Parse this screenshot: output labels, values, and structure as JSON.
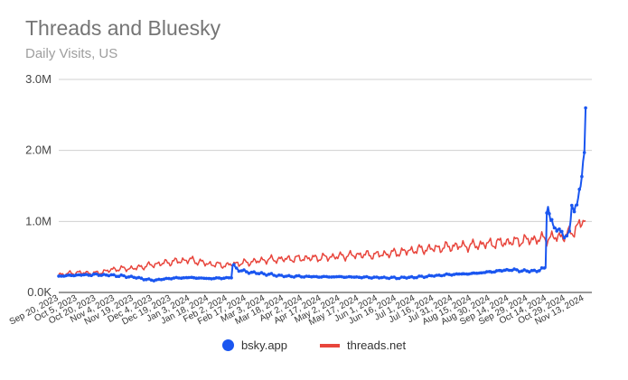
{
  "chart_data": {
    "type": "line",
    "title": "Threads and Bluesky",
    "subtitle": "Daily Visits, US",
    "ylim": [
      0,
      3000000
    ],
    "yticks": [
      {
        "value": 0,
        "label": "0.0K"
      },
      {
        "value": 1000000,
        "label": "1.0M"
      },
      {
        "value": 2000000,
        "label": "2.0M"
      },
      {
        "value": 3000000,
        "label": "3.0M"
      }
    ],
    "xrange": [
      "2023-09-20",
      "2024-11-19"
    ],
    "xticks": [
      "Sep 20, 2023",
      "Oct 5, 2023",
      "Oct 20, 2023",
      "Nov 4, 2023",
      "Nov 19, 2023",
      "Dec 4, 2023",
      "Dec 19, 2023",
      "Jan 3, 2024",
      "Jan 18, 2024",
      "Feb 2, 2024",
      "Feb 17, 2024",
      "Mar 3, 2024",
      "Mar 18, 2024",
      "Apr 2, 2024",
      "Apr 17, 2024",
      "May 2, 2024",
      "May 17, 2024",
      "Jun 1, 2024",
      "Jun 16, 2024",
      "Jul 1, 2024",
      "Jul 16, 2024",
      "Jul 31, 2024",
      "Aug 15, 2024",
      "Aug 30, 2024",
      "Sep 14, 2024",
      "Sep 29, 2024",
      "Oct 14, 2024",
      "Oct 29, 2024",
      "Nov 13, 2024"
    ],
    "grid": true,
    "legend_position": "bottom",
    "series": [
      {
        "name": "bsky.app",
        "color": "#1a56f0",
        "marker": "circle",
        "points": [
          [
            "2023-09-20",
            230000
          ],
          [
            "2023-10-05",
            245000
          ],
          [
            "2023-10-20",
            250000
          ],
          [
            "2023-11-04",
            240000
          ],
          [
            "2023-11-19",
            215000
          ],
          [
            "2023-12-04",
            170000
          ],
          [
            "2023-12-19",
            200000
          ],
          [
            "2024-01-03",
            210000
          ],
          [
            "2024-01-18",
            195000
          ],
          [
            "2024-02-02",
            205000
          ],
          [
            "2024-02-05",
            210000
          ],
          [
            "2024-02-06",
            400000
          ],
          [
            "2024-02-10",
            320000
          ],
          [
            "2024-02-17",
            290000
          ],
          [
            "2024-03-03",
            260000
          ],
          [
            "2024-03-18",
            230000
          ],
          [
            "2024-04-02",
            225000
          ],
          [
            "2024-04-17",
            220000
          ],
          [
            "2024-05-02",
            220000
          ],
          [
            "2024-05-17",
            215000
          ],
          [
            "2024-06-01",
            210000
          ],
          [
            "2024-06-16",
            205000
          ],
          [
            "2024-07-01",
            215000
          ],
          [
            "2024-07-16",
            235000
          ],
          [
            "2024-07-31",
            255000
          ],
          [
            "2024-08-15",
            265000
          ],
          [
            "2024-08-30",
            290000
          ],
          [
            "2024-09-14",
            320000
          ],
          [
            "2024-09-29",
            300000
          ],
          [
            "2024-10-08",
            310000
          ],
          [
            "2024-10-13",
            350000
          ],
          [
            "2024-10-14",
            1200000
          ],
          [
            "2024-10-15",
            1220000
          ],
          [
            "2024-10-17",
            1000000
          ],
          [
            "2024-10-20",
            920000
          ],
          [
            "2024-10-23",
            880000
          ],
          [
            "2024-10-26",
            850000
          ],
          [
            "2024-10-29",
            780000
          ],
          [
            "2024-11-01",
            820000
          ],
          [
            "2024-11-03",
            1240000
          ],
          [
            "2024-11-05",
            1200000
          ],
          [
            "2024-11-07",
            1220000
          ],
          [
            "2024-11-09",
            1400000
          ],
          [
            "2024-11-11",
            1650000
          ],
          [
            "2024-11-13",
            2000000
          ],
          [
            "2024-11-14",
            2600000
          ]
        ]
      },
      {
        "name": "threads.net",
        "color": "#e8453c",
        "marker": "line",
        "points": [
          [
            "2023-09-20",
            250000
          ],
          [
            "2023-10-05",
            280000
          ],
          [
            "2023-10-20",
            270000
          ],
          [
            "2023-11-04",
            330000
          ],
          [
            "2023-11-19",
            340000
          ],
          [
            "2023-12-04",
            390000
          ],
          [
            "2023-12-19",
            430000
          ],
          [
            "2024-01-03",
            460000
          ],
          [
            "2024-01-18",
            400000
          ],
          [
            "2024-02-02",
            380000
          ],
          [
            "2024-02-05",
            400000
          ],
          [
            "2024-02-17",
            420000
          ],
          [
            "2024-03-03",
            460000
          ],
          [
            "2024-03-18",
            470000
          ],
          [
            "2024-04-02",
            480000
          ],
          [
            "2024-04-17",
            490000
          ],
          [
            "2024-05-02",
            510000
          ],
          [
            "2024-05-17",
            530000
          ],
          [
            "2024-06-01",
            530000
          ],
          [
            "2024-06-16",
            560000
          ],
          [
            "2024-07-01",
            600000
          ],
          [
            "2024-07-16",
            620000
          ],
          [
            "2024-07-31",
            650000
          ],
          [
            "2024-08-15",
            660000
          ],
          [
            "2024-08-30",
            690000
          ],
          [
            "2024-09-14",
            710000
          ],
          [
            "2024-09-29",
            740000
          ],
          [
            "2024-10-14",
            760000
          ],
          [
            "2024-10-29",
            800000
          ],
          [
            "2024-11-05",
            880000
          ],
          [
            "2024-11-09",
            950000
          ],
          [
            "2024-11-13",
            1030000
          ],
          [
            "2024-11-14",
            1010000
          ]
        ]
      }
    ]
  }
}
